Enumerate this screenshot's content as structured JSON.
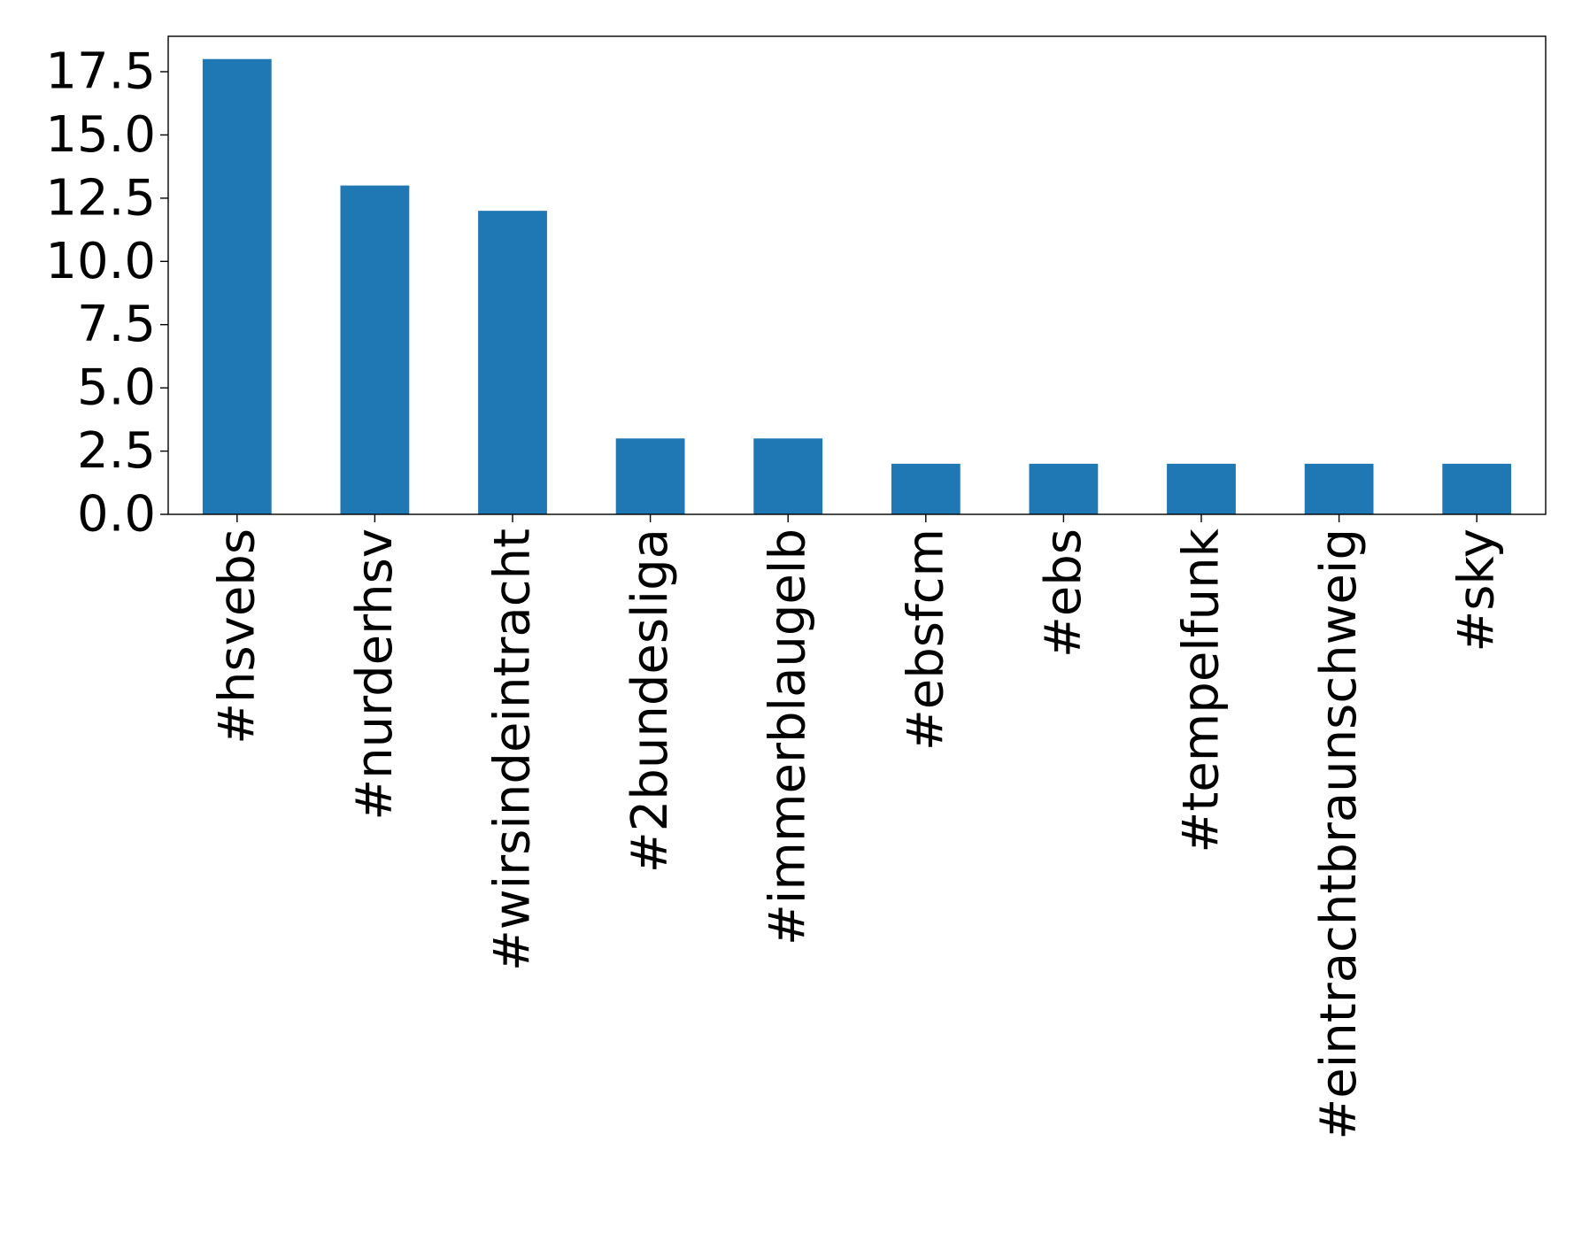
{
  "chart_data": {
    "type": "bar",
    "title": "",
    "xlabel": "",
    "ylabel": "",
    "categories": [
      "#hsvebs",
      "#nurderhsv",
      "#wirsindeintracht",
      "#2bundesliga",
      "#immerblaugelb",
      "#ebsfcm",
      "#ebs",
      "#tempelfunk",
      "#eintrachtbraunschweig",
      "#sky"
    ],
    "values": [
      18,
      13,
      12,
      3,
      3,
      2,
      2,
      2,
      2,
      2
    ],
    "ylim": [
      0,
      18.9
    ],
    "yticks": [
      0.0,
      2.5,
      5.0,
      7.5,
      10.0,
      12.5,
      15.0,
      17.5
    ],
    "ytick_labels": [
      "0.0",
      "2.5",
      "5.0",
      "7.5",
      "10.0",
      "12.5",
      "15.0",
      "17.5"
    ],
    "bar_color": "#1f77b4",
    "grid": false,
    "legend": "none"
  }
}
